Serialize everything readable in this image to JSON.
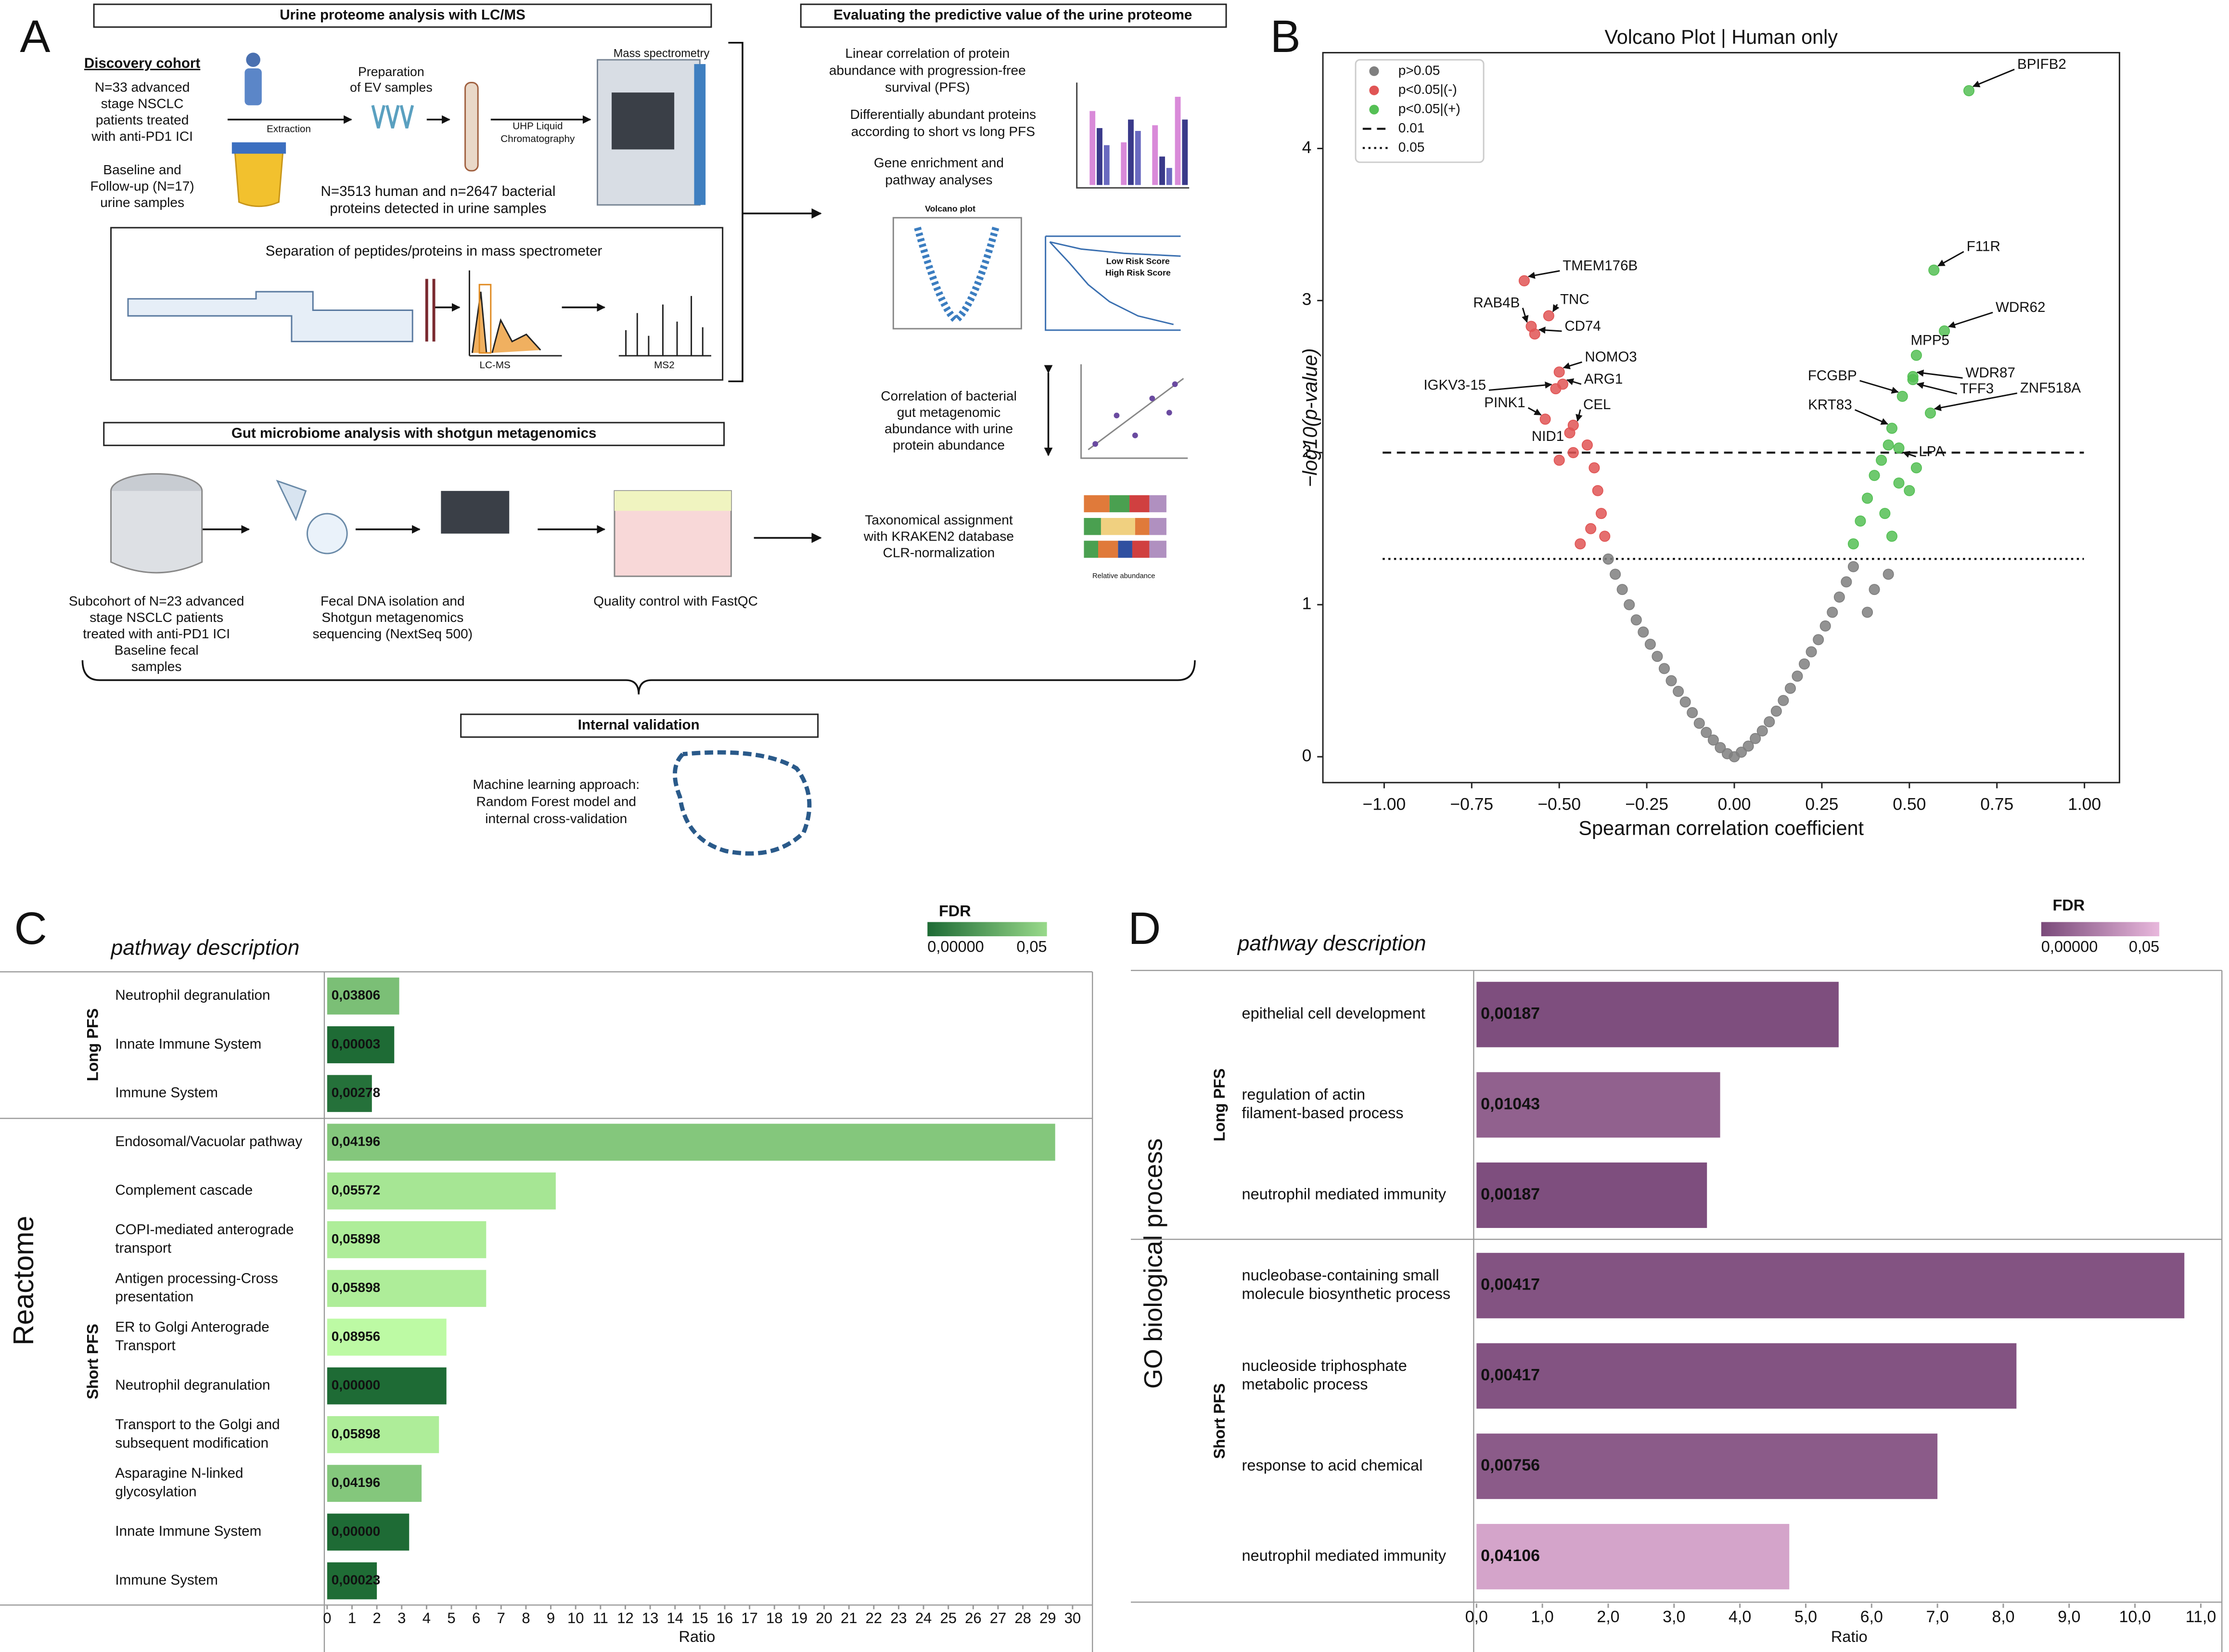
{
  "panel_labels": [
    "A",
    "B",
    "C",
    "D"
  ],
  "diagram": {
    "headers": [
      "Urine proteome analysis with LC/MS",
      "Evaluating the predictive value of the urine proteome",
      "Gut microbiome analysis with shotgun metagenomics",
      "Internal validation"
    ],
    "blocks": [
      [
        "Discovery cohort"
      ],
      [
        "N=33 advanced",
        "stage NSCLC",
        "patients treated",
        "with anti-PD1 ICI"
      ],
      [
        "Baseline and",
        "Follow-up (N=17)",
        "urine samples"
      ],
      [
        "Extraction"
      ],
      [
        "Preparation",
        "of EV samples"
      ],
      [
        "Mass spectrometry"
      ],
      [
        "UHP Liquid",
        "Chromatography"
      ],
      [
        "N=3513 human and n=2647 bacterial",
        "proteins detected in urine samples"
      ],
      [
        "Separation of peptides/proteins in mass spectrometer"
      ],
      [
        "LC-MS"
      ],
      [
        "MS2"
      ],
      [
        "Linear correlation of protein",
        "abundance with progression-free",
        "survival (PFS)"
      ],
      [
        "Differentially abundant proteins",
        "according to short vs long PFS"
      ],
      [
        "Gene enrichment and",
        "pathway analyses"
      ],
      [
        "Volcano plot"
      ],
      [
        "Low Risk Score",
        "High Risk Score"
      ],
      [
        "Correlation of bacterial",
        "gut metagenomic",
        "abundance with urine",
        "protein abundance"
      ],
      [
        "Taxonomical assignment",
        "with KRAKEN2 database",
        "CLR-normalization"
      ],
      [
        "Relative abundance"
      ],
      [
        "Subcohort of N=23 advanced",
        "stage NSCLC patients",
        "treated with anti-PD1 ICI",
        "Baseline fecal",
        "samples"
      ],
      [
        "Fecal DNA isolation and",
        "Shotgun metagenomics",
        "sequencing (NextSeq 500)"
      ],
      [
        "Quality control with FastQC"
      ],
      [
        "Machine learning approach:",
        "Random Forest model and",
        "internal cross-validation"
      ]
    ]
  },
  "chart_data": [
    {
      "type": "scatter",
      "title": "Volcano Plot | Human only",
      "xlabel": "Spearman correlation coefficient",
      "ylabel": "−log10(p-value)",
      "xlim": [
        -1.175,
        1.1
      ],
      "ylim": [
        -0.17,
        4.63
      ],
      "xticks": [
        {
          "value": -1,
          "label": "−1.00"
        },
        {
          "value": -0.75,
          "label": "−0.75"
        },
        {
          "value": -0.5,
          "label": "−0.50"
        },
        {
          "value": -0.25,
          "label": "−0.25"
        },
        {
          "value": 0,
          "label": "0.00"
        },
        {
          "value": 0.25,
          "label": "0.25"
        },
        {
          "value": 0.5,
          "label": "0.50"
        },
        {
          "value": 0.75,
          "label": "0.75"
        },
        {
          "value": 1,
          "label": "1.00"
        }
      ],
      "yticks": [
        0,
        1,
        2,
        3,
        4
      ],
      "legend": "upper left",
      "series": [
        {
          "name": "p>0.05",
          "color": "#7f7f7f",
          "x": [
            -0.36,
            -0.34,
            -0.32,
            -0.3,
            -0.28,
            -0.26,
            -0.24,
            -0.22,
            -0.2,
            -0.18,
            -0.16,
            -0.14,
            -0.12,
            -0.1,
            -0.08,
            -0.06,
            -0.04,
            -0.02,
            0,
            0.02,
            0.04,
            0.06,
            0.08,
            0.1,
            0.12,
            0.14,
            0.16,
            0.18,
            0.2,
            0.22,
            0.24,
            0.26,
            0.28,
            0.3,
            0.32,
            0.34,
            0.38,
            0.4,
            0.44
          ],
          "values": [
            1.3,
            1.2,
            1.1,
            1.0,
            0.9,
            0.82,
            0.74,
            0.66,
            0.58,
            0.5,
            0.43,
            0.36,
            0.29,
            0.22,
            0.16,
            0.11,
            0.06,
            0.02,
            0,
            0.03,
            0.07,
            0.12,
            0.17,
            0.23,
            0.3,
            0.37,
            0.45,
            0.53,
            0.61,
            0.69,
            0.77,
            0.86,
            0.95,
            1.05,
            1.15,
            1.25,
            0.95,
            1.1,
            1.2
          ]
        },
        {
          "name": "p<0.05|(-)",
          "color": "#e05555",
          "x": [
            -0.37,
            -0.38,
            -0.39,
            -0.4,
            -0.41,
            -0.42,
            -0.44,
            -0.46,
            -0.5
          ],
          "values": [
            1.45,
            1.6,
            1.75,
            1.9,
            1.5,
            2.05,
            1.4,
            2.0,
            1.95
          ]
        },
        {
          "name": "p<0.05|(+)",
          "color": "#55c055",
          "x": [
            0.34,
            0.36,
            0.38,
            0.4,
            0.42,
            0.43,
            0.44,
            0.45,
            0.47,
            0.5,
            0.52
          ],
          "values": [
            1.4,
            1.55,
            1.7,
            1.85,
            1.95,
            1.6,
            2.05,
            1.45,
            1.8,
            1.75,
            1.9
          ]
        }
      ],
      "hlines": [
        {
          "name": "0.01",
          "value": 2,
          "style": "dashed"
        },
        {
          "name": "0.05",
          "value": 1.301,
          "style": "dotted"
        }
      ],
      "annotations": [
        {
          "text": "BPIFB2",
          "x": 0.67,
          "y": 4.38
        },
        {
          "text": "F11R",
          "x": 0.57,
          "y": 3.2
        },
        {
          "text": "WDR62",
          "x": 0.6,
          "y": 2.8
        },
        {
          "text": "MPP5",
          "x": 0.52,
          "y": 2.64
        },
        {
          "text": "WDR87",
          "x": 0.51,
          "y": 2.5
        },
        {
          "text": "FCGBP",
          "x": 0.48,
          "y": 2.37
        },
        {
          "text": "TFF3",
          "x": 0.51,
          "y": 2.48
        },
        {
          "text": "ZNF518A",
          "x": 0.56,
          "y": 2.26
        },
        {
          "text": "KRT83",
          "x": 0.45,
          "y": 2.16
        },
        {
          "text": "LPA",
          "x": 0.47,
          "y": 2.03
        },
        {
          "text": "TMEM176B",
          "x": -0.6,
          "y": 3.13
        },
        {
          "text": "TNC",
          "x": -0.53,
          "y": 2.9
        },
        {
          "text": "RAB4B",
          "x": -0.58,
          "y": 2.83
        },
        {
          "text": "CD74",
          "x": -0.57,
          "y": 2.78
        },
        {
          "text": "NOMO3",
          "x": -0.5,
          "y": 2.53
        },
        {
          "text": "ARG1",
          "x": -0.49,
          "y": 2.45
        },
        {
          "text": "IGKV3-15",
          "x": -0.51,
          "y": 2.42
        },
        {
          "text": "PINK1",
          "x": -0.54,
          "y": 2.22
        },
        {
          "text": "CEL",
          "x": -0.46,
          "y": 2.18
        },
        {
          "text": "NID1",
          "x": -0.47,
          "y": 2.13
        }
      ]
    },
    {
      "type": "barh",
      "header": "pathway description",
      "database": "Reactome",
      "xlabel": "Ratio",
      "xlim": [
        0,
        30.8
      ],
      "xticks": [
        0,
        1,
        2,
        3,
        4,
        5,
        6,
        7,
        8,
        9,
        10,
        11,
        12,
        13,
        14,
        15,
        16,
        17,
        18,
        19,
        20,
        21,
        22,
        23,
        24,
        25,
        26,
        27,
        28,
        29,
        30
      ],
      "fdr_legend": {
        "title": "FDR",
        "ticks": [
          {
            "value": 0,
            "label": "0,00000"
          },
          {
            "value": 0.05,
            "label": "0,05"
          }
        ],
        "colors": [
          "#1e6b35",
          "#98d98a"
        ]
      },
      "groups": [
        {
          "name": "Long PFS",
          "categories": [
            [
              "Neutrophil degranulation"
            ],
            [
              "Innate Immune System"
            ],
            [
              "Immune System"
            ]
          ],
          "values": [
            2.9,
            2.7,
            1.8
          ],
          "fdr": [
            0.03806,
            3e-05,
            0.00278
          ],
          "fdr_labels": [
            "0,03806",
            "0,00003",
            "0,00278"
          ]
        },
        {
          "name": "Short PFS",
          "categories": [
            [
              "Endosomal/Vacuolar pathway"
            ],
            [
              "Complement cascade"
            ],
            [
              "COPI-mediated anterograde",
              "transport"
            ],
            [
              "Antigen processing-Cross",
              "presentation"
            ],
            [
              "ER to Golgi Anterograde",
              "Transport"
            ],
            [
              "Neutrophil degranulation"
            ],
            [
              "Transport to the Golgi and",
              "subsequent modification"
            ],
            [
              "Asparagine N-linked",
              "glycosylation"
            ],
            [
              "Innate Immune System"
            ],
            [
              "Immune System"
            ]
          ],
          "values": [
            29.3,
            9.2,
            6.4,
            6.4,
            4.8,
            4.8,
            4.5,
            3.8,
            3.3,
            2.0
          ],
          "fdr": [
            0.04196,
            0.05572,
            0.05898,
            0.05898,
            0.08956,
            0.0,
            0.05898,
            0.04196,
            0.0,
            0.00023
          ],
          "fdr_labels": [
            "0,04196",
            "0,05572",
            "0,05898",
            "0,05898",
            "0,08956",
            "0,00000",
            "0,05898",
            "0,04196",
            "0,00000",
            "0,00023"
          ]
        }
      ]
    },
    {
      "type": "barh",
      "header": "pathway description",
      "database": "GO biological process",
      "xlabel": "Ratio",
      "xlim": [
        0,
        11.32
      ],
      "xticks": [
        {
          "value": 0,
          "label": "0,0"
        },
        {
          "value": 1,
          "label": "1,0"
        },
        {
          "value": 2,
          "label": "2,0"
        },
        {
          "value": 3,
          "label": "3,0"
        },
        {
          "value": 4,
          "label": "4,0"
        },
        {
          "value": 5,
          "label": "5,0"
        },
        {
          "value": 6,
          "label": "6,0"
        },
        {
          "value": 7,
          "label": "7,0"
        },
        {
          "value": 8,
          "label": "8,0"
        },
        {
          "value": 9,
          "label": "9,0"
        },
        {
          "value": 10,
          "label": "10,0"
        },
        {
          "value": 11,
          "label": "11,0"
        }
      ],
      "fdr_legend": {
        "title": "FDR",
        "ticks": [
          {
            "value": 0,
            "label": "0,00000"
          },
          {
            "value": 0.05,
            "label": "0,05"
          }
        ],
        "colors": [
          "#7a4a7a",
          "#e8b8dc"
        ]
      },
      "groups": [
        {
          "name": "Long PFS",
          "categories": [
            [
              "epithelial cell development"
            ],
            [
              "regulation of actin",
              "filament-based process"
            ],
            [
              "neutrophil mediated immunity"
            ]
          ],
          "values": [
            5.5,
            3.7,
            3.5
          ],
          "fdr": [
            0.00187,
            0.01043,
            0.00187
          ],
          "fdr_labels": [
            "0,00187",
            "0,01043",
            "0,00187"
          ]
        },
        {
          "name": "Short PFS",
          "categories": [
            [
              "nucleobase-containing small",
              "molecule biosynthetic process"
            ],
            [
              "nucleoside triphosphate",
              "metabolic process"
            ],
            [
              "response to acid chemical"
            ],
            [
              "neutrophil mediated immunity"
            ]
          ],
          "values": [
            10.75,
            8.2,
            7.0,
            4.75
          ],
          "fdr": [
            0.00417,
            0.00417,
            0.00756,
            0.04106
          ],
          "fdr_labels": [
            "0,00417",
            "0,00417",
            "0,00756",
            "0,04106"
          ]
        }
      ]
    }
  ]
}
